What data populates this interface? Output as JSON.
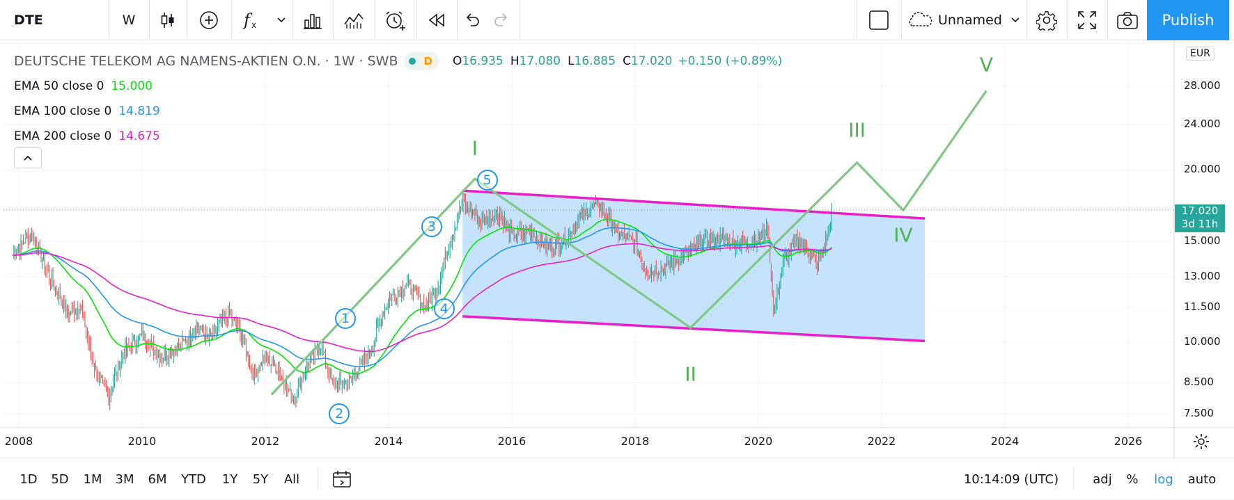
{
  "toolbar": {
    "symbol": "DTE",
    "interval": "W",
    "layout_name": "Unnamed",
    "publish_label": "Publish"
  },
  "legend": {
    "title": "DEUTSCHE TELEKOM AG NAMENS-AKTIEN O.N. · 1W · SWB",
    "status_badge": "D",
    "ohlc": [
      {
        "label": "O",
        "value": "16.935"
      },
      {
        "label": "H",
        "value": "17.080"
      },
      {
        "label": "L",
        "value": "16.885"
      },
      {
        "label": "C",
        "value": "17.020"
      }
    ],
    "change": "+0.150 (+0.89%)",
    "indicators": [
      {
        "label": "EMA 50 close 0",
        "value": "15.000",
        "color": "#00e600"
      },
      {
        "label": "EMA 100 close 0",
        "value": "14.819",
        "color": "#2196f3"
      },
      {
        "label": "EMA 200 close 0",
        "value": "14.675",
        "color": "#e91ec8"
      }
    ]
  },
  "price_axis": {
    "currency": "EUR",
    "labels": [
      "28.000",
      "24.000",
      "20.000",
      "15.000",
      "13.000",
      "11.500",
      "10.000",
      "8.500",
      "7.500"
    ],
    "current_price": "17.020",
    "countdown": "3d 11h"
  },
  "time_axis": {
    "labels": [
      "2008",
      "2010",
      "2012",
      "2014",
      "2016",
      "2018",
      "2020",
      "2022",
      "2024",
      "2026"
    ]
  },
  "wave_labels": {
    "major": [
      "I",
      "II",
      "III",
      "IV",
      "V"
    ],
    "minor": [
      "1",
      "2",
      "3",
      "4",
      "5"
    ]
  },
  "colors": {
    "channel_line": "#e91ec8",
    "channel_fill": "#bbdefb",
    "wave_line": "#81c784",
    "candle_up": "#26a69a",
    "candle_down": "#ef5350",
    "accent": "#2196f3"
  },
  "bottom_bar": {
    "ranges": [
      "1D",
      "5D",
      "1M",
      "3M",
      "6M",
      "YTD",
      "1Y",
      "5Y",
      "All"
    ],
    "clock": "10:14:09 (UTC)",
    "options": [
      "adj",
      "%",
      "log",
      "auto"
    ]
  }
}
